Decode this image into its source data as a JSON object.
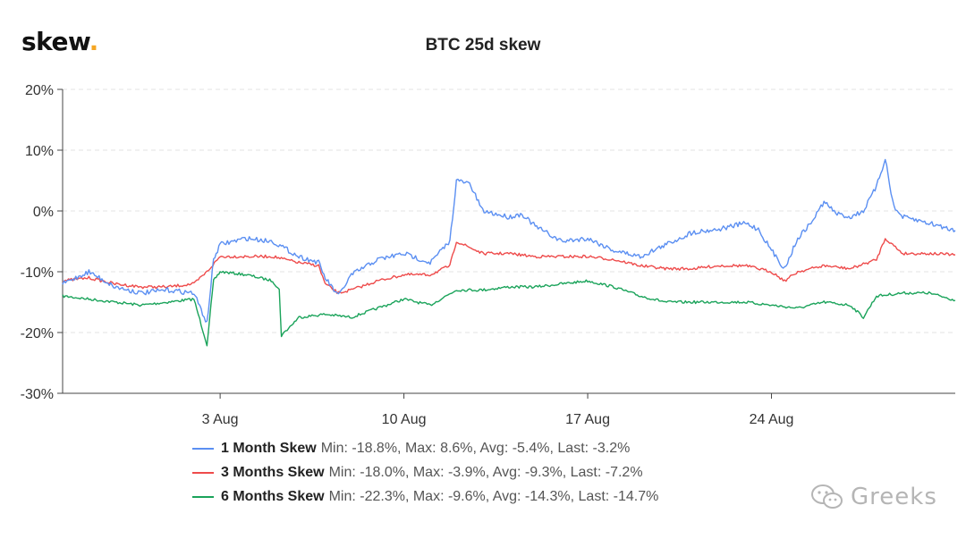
{
  "brand": {
    "name": "skew",
    "dot": "."
  },
  "watermark": {
    "text": "Greeks",
    "icon": "wechat-icon"
  },
  "chart_data": {
    "type": "line",
    "title": "BTC 25d skew",
    "x_range": [
      "2020-07-28",
      "2020-08-31"
    ],
    "x_ticks": [
      {
        "date": "2020-08-03",
        "label": "3 Aug"
      },
      {
        "date": "2020-08-10",
        "label": "10 Aug"
      },
      {
        "date": "2020-08-17",
        "label": "17 Aug"
      },
      {
        "date": "2020-08-24",
        "label": "24 Aug"
      }
    ],
    "y_ticks": [
      "20%",
      "10%",
      "0%",
      "-10%",
      "-20%",
      "-30%"
    ],
    "ylim": [
      -30,
      20
    ],
    "grid": "horizontal dashed",
    "legend_position": "bottom",
    "series": [
      {
        "name": "1 Month Skew",
        "stats": "Min: -18.8%, Max: 8.6%, Avg: -5.4%, Last: -3.2%",
        "color": "#5b8ff2",
        "points": [
          [
            "2020-07-28",
            -12.0
          ],
          [
            "2020-07-29",
            -10.0
          ],
          [
            "2020-07-30",
            -12.5
          ],
          [
            "2020-07-31",
            -13.5
          ],
          [
            "2020-08-01",
            -13.0
          ],
          [
            "2020-08-02",
            -13.5
          ],
          [
            "2020-08-02 12:00",
            -18.5
          ],
          [
            "2020-08-02 18:00",
            -8.0
          ],
          [
            "2020-08-03",
            -5.5
          ],
          [
            "2020-08-04",
            -4.5
          ],
          [
            "2020-08-05",
            -5.0
          ],
          [
            "2020-08-06",
            -7.5
          ],
          [
            "2020-08-06 18:00",
            -8.5
          ],
          [
            "2020-08-07",
            -11.0
          ],
          [
            "2020-08-07 12:00",
            -14.0
          ],
          [
            "2020-08-08",
            -10.5
          ],
          [
            "2020-08-09",
            -8.0
          ],
          [
            "2020-08-10",
            -7.0
          ],
          [
            "2020-08-11",
            -8.5
          ],
          [
            "2020-08-11 18:00",
            -5.0
          ],
          [
            "2020-08-12",
            5.0
          ],
          [
            "2020-08-12 12:00",
            4.5
          ],
          [
            "2020-08-13",
            0.0
          ],
          [
            "2020-08-14",
            -1.0
          ],
          [
            "2020-08-14 12:00",
            -0.5
          ],
          [
            "2020-08-15",
            -2.5
          ],
          [
            "2020-08-16",
            -5.0
          ],
          [
            "2020-08-17",
            -4.5
          ],
          [
            "2020-08-18",
            -6.5
          ],
          [
            "2020-08-19",
            -7.5
          ],
          [
            "2020-08-20",
            -5.5
          ],
          [
            "2020-08-21",
            -3.5
          ],
          [
            "2020-08-22",
            -3.0
          ],
          [
            "2020-08-23",
            -2.0
          ],
          [
            "2020-08-23 12:00",
            -3.0
          ],
          [
            "2020-08-24",
            -6.5
          ],
          [
            "2020-08-24 12:00",
            -9.5
          ],
          [
            "2020-08-25",
            -4.5
          ],
          [
            "2020-08-25 12:00",
            -2.0
          ],
          [
            "2020-08-26",
            1.5
          ],
          [
            "2020-08-26 12:00",
            -0.5
          ],
          [
            "2020-08-27",
            -1.0
          ],
          [
            "2020-08-27 12:00",
            0.0
          ],
          [
            "2020-08-28",
            4.0
          ],
          [
            "2020-08-28 08:00",
            8.6
          ],
          [
            "2020-08-28 16:00",
            0.5
          ],
          [
            "2020-08-29",
            -1.0
          ],
          [
            "2020-08-30",
            -2.0
          ],
          [
            "2020-08-31",
            -3.2
          ]
        ]
      },
      {
        "name": "3 Months Skew",
        "stats": "Min: -18.0%, Max: -3.9%, Avg: -9.3%, Last: -7.2%",
        "color": "#ee4b4b",
        "points": [
          [
            "2020-07-28",
            -11.5
          ],
          [
            "2020-07-29",
            -11.0
          ],
          [
            "2020-07-30",
            -12.0
          ],
          [
            "2020-07-31",
            -12.5
          ],
          [
            "2020-08-01",
            -12.5
          ],
          [
            "2020-08-02",
            -12.0
          ],
          [
            "2020-08-02 12:00",
            -10.0
          ],
          [
            "2020-08-03",
            -7.5
          ],
          [
            "2020-08-04",
            -7.5
          ],
          [
            "2020-08-05",
            -7.5
          ],
          [
            "2020-08-06",
            -8.5
          ],
          [
            "2020-08-06 18:00",
            -9.0
          ],
          [
            "2020-08-07",
            -12.0
          ],
          [
            "2020-08-07 12:00",
            -13.5
          ],
          [
            "2020-08-08",
            -13.0
          ],
          [
            "2020-08-09",
            -11.5
          ],
          [
            "2020-08-10",
            -10.5
          ],
          [
            "2020-08-11",
            -10.5
          ],
          [
            "2020-08-11 18:00",
            -9.0
          ],
          [
            "2020-08-12",
            -5.0
          ],
          [
            "2020-08-13",
            -7.0
          ],
          [
            "2020-08-14",
            -7.0
          ],
          [
            "2020-08-15",
            -7.5
          ],
          [
            "2020-08-16",
            -7.5
          ],
          [
            "2020-08-17",
            -7.5
          ],
          [
            "2020-08-18",
            -8.0
          ],
          [
            "2020-08-19",
            -9.0
          ],
          [
            "2020-08-20",
            -9.5
          ],
          [
            "2020-08-21",
            -9.5
          ],
          [
            "2020-08-22",
            -9.0
          ],
          [
            "2020-08-23",
            -9.0
          ],
          [
            "2020-08-24",
            -10.0
          ],
          [
            "2020-08-24 12:00",
            -11.5
          ],
          [
            "2020-08-25",
            -10.0
          ],
          [
            "2020-08-26",
            -9.0
          ],
          [
            "2020-08-27",
            -9.5
          ],
          [
            "2020-08-28",
            -8.0
          ],
          [
            "2020-08-28 08:00",
            -4.5
          ],
          [
            "2020-08-29",
            -7.0
          ],
          [
            "2020-08-30",
            -7.0
          ],
          [
            "2020-08-31",
            -7.2
          ]
        ]
      },
      {
        "name": "6 Months Skew",
        "stats": "Min: -22.3%, Max: -9.6%, Avg: -14.3%, Last: -14.7%",
        "color": "#1aa35a",
        "points": [
          [
            "2020-07-28",
            -14.0
          ],
          [
            "2020-07-29",
            -14.5
          ],
          [
            "2020-07-30",
            -15.0
          ],
          [
            "2020-07-31",
            -15.5
          ],
          [
            "2020-08-01",
            -15.0
          ],
          [
            "2020-08-02",
            -14.5
          ],
          [
            "2020-08-02 12:00",
            -22.0
          ],
          [
            "2020-08-02 18:00",
            -11.5
          ],
          [
            "2020-08-03",
            -10.0
          ],
          [
            "2020-08-04",
            -10.5
          ],
          [
            "2020-08-05",
            -11.5
          ],
          [
            "2020-08-05 06:00",
            -13.0
          ],
          [
            "2020-08-05 08:00",
            -20.5
          ],
          [
            "2020-08-06",
            -17.5
          ],
          [
            "2020-08-07",
            -17.0
          ],
          [
            "2020-08-08",
            -17.5
          ],
          [
            "2020-08-09",
            -16.0
          ],
          [
            "2020-08-10",
            -14.5
          ],
          [
            "2020-08-11",
            -15.5
          ],
          [
            "2020-08-12",
            -13.0
          ],
          [
            "2020-08-13",
            -13.0
          ],
          [
            "2020-08-14",
            -12.5
          ],
          [
            "2020-08-15",
            -12.5
          ],
          [
            "2020-08-16",
            -12.0
          ],
          [
            "2020-08-17",
            -11.5
          ],
          [
            "2020-08-18",
            -12.5
          ],
          [
            "2020-08-19",
            -14.0
          ],
          [
            "2020-08-20",
            -15.0
          ],
          [
            "2020-08-21",
            -15.0
          ],
          [
            "2020-08-22",
            -15.0
          ],
          [
            "2020-08-23",
            -15.0
          ],
          [
            "2020-08-24",
            -15.5
          ],
          [
            "2020-08-25",
            -16.0
          ],
          [
            "2020-08-26",
            -15.0
          ],
          [
            "2020-08-27",
            -15.5
          ],
          [
            "2020-08-27 12:00",
            -17.5
          ],
          [
            "2020-08-28",
            -14.0
          ],
          [
            "2020-08-29",
            -13.5
          ],
          [
            "2020-08-30",
            -13.5
          ],
          [
            "2020-08-31",
            -14.7
          ]
        ]
      }
    ]
  }
}
